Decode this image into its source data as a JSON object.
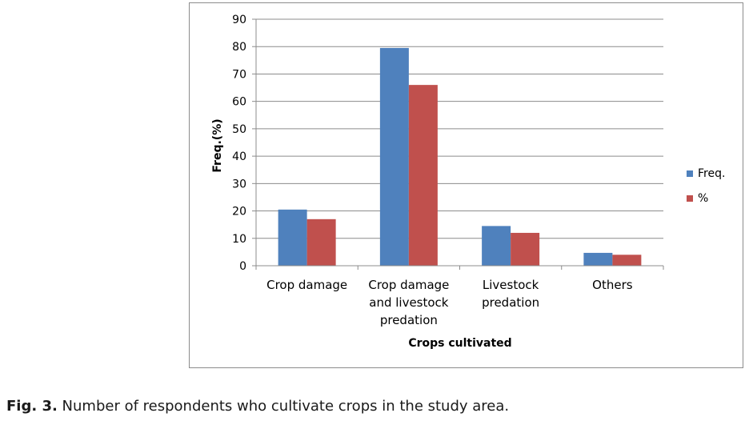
{
  "chart_data": {
    "type": "bar",
    "categories": [
      [
        "Crop damage"
      ],
      [
        "Crop damage",
        "and livestock",
        "predation"
      ],
      [
        "Livestock",
        "predation"
      ],
      [
        "Others"
      ]
    ],
    "series": [
      {
        "name": "Freq.",
        "values": [
          20.5,
          79.5,
          14.5,
          4.7
        ],
        "color": "#4f81bd"
      },
      {
        "name": "%",
        "values": [
          17,
          66,
          12,
          4
        ],
        "color": "#c0504d"
      }
    ],
    "ylim": [
      0,
      90
    ],
    "yticks": [
      0,
      10,
      20,
      30,
      40,
      50,
      60,
      70,
      80,
      90
    ],
    "xlabel": "Crops cultivated",
    "ylabel": "Freq.(%)",
    "grid": true,
    "legend_position": "right"
  },
  "caption": {
    "label": "Fig. 3.",
    "text": " Number of respondents who cultivate crops in the study area."
  }
}
